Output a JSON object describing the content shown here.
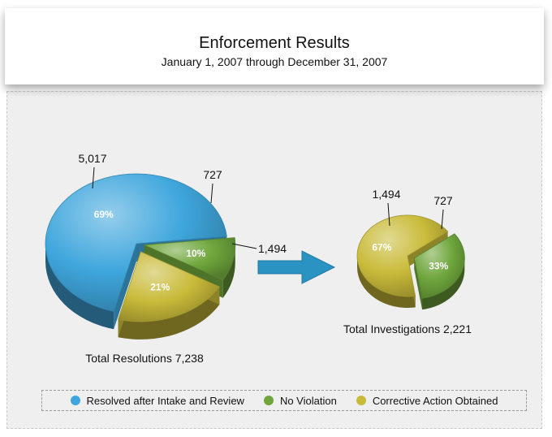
{
  "header": {
    "title": "Enforcement Results",
    "subtitle": "January 1, 2007 through December 31, 2007"
  },
  "colors": {
    "resolved": "#3fa6dc",
    "no_violation": "#6fa63c",
    "corrective": "#c9bb3a"
  },
  "chart_data": [
    {
      "type": "pie",
      "title": "Total Resolutions 7,238",
      "slices": [
        {
          "label": "Resolved after Intake and Review",
          "value": 5017,
          "percent": "69%",
          "value_label": "5,017",
          "color_key": "resolved"
        },
        {
          "label": "No Violation",
          "value": 727,
          "percent": "10%",
          "value_label": "727",
          "color_key": "no_violation"
        },
        {
          "label": "Corrective Action Obtained",
          "value": 1494,
          "percent": "21%",
          "value_label": "1,494",
          "color_key": "corrective"
        }
      ]
    },
    {
      "type": "pie",
      "title": "Total Investigations 2,221",
      "slices": [
        {
          "label": "Corrective Action Obtained",
          "value": 1494,
          "percent": "67%",
          "value_label": "1,494",
          "color_key": "corrective"
        },
        {
          "label": "No Violation",
          "value": 727,
          "percent": "33%",
          "value_label": "727",
          "color_key": "no_violation"
        }
      ]
    }
  ],
  "legend": [
    {
      "label": "Resolved after Intake and Review",
      "color_key": "resolved"
    },
    {
      "label": "No Violation",
      "color_key": "no_violation"
    },
    {
      "label": "Corrective Action Obtained",
      "color_key": "corrective"
    }
  ]
}
